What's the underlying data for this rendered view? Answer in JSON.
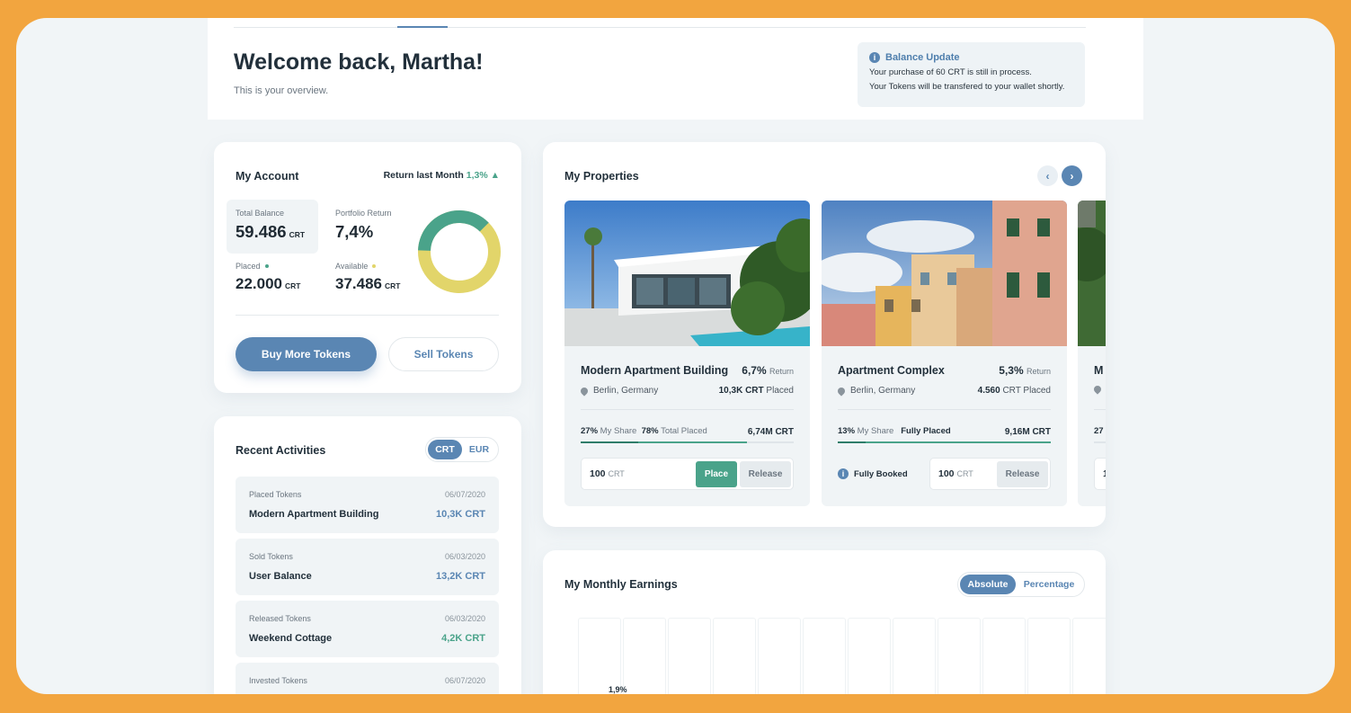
{
  "header": {
    "welcome": "Welcome back, Martha!",
    "subtitle": "This is your overview."
  },
  "notice": {
    "icon": "info-icon",
    "title": "Balance Update",
    "line1": "Your purchase of 60 CRT is still in process.",
    "line2": "Your Tokens will be transfered to your wallet shortly."
  },
  "account": {
    "title": "My Account",
    "return_label": "Return last Month",
    "return_value": "1,3% ▲",
    "total_balance_label": "Total Balance",
    "total_balance_value": "59.486",
    "portfolio_return_label": "Portfolio Return",
    "portfolio_return_value": "7,4%",
    "placed_label": "Placed",
    "placed_value": "22.000",
    "available_label": "Available",
    "available_value": "37.486",
    "unit": "CRT",
    "placed_color": "#4aa38a",
    "available_color": "#e2d56a",
    "buy_button": "Buy More Tokens",
    "sell_button": "Sell Tokens"
  },
  "activities": {
    "title": "Recent Activities",
    "toggle": [
      "CRT",
      "EUR"
    ],
    "active_toggle": "CRT",
    "items": [
      {
        "type": "Placed Tokens",
        "date": "06/07/2020",
        "name": "Modern Apartment  Building",
        "amount": "10,3K CRT",
        "color": "#5a86b3"
      },
      {
        "type": "Sold Tokens",
        "date": "06/03/2020",
        "name": "User Balance",
        "amount": "13,2K CRT",
        "color": "#5a86b3"
      },
      {
        "type": "Released Tokens",
        "date": "06/03/2020",
        "name": "Weekend Cottage",
        "amount": "4,2K CRT",
        "color": "#4aa38a"
      },
      {
        "type": "Invested Tokens",
        "date": "06/07/2020",
        "name": "",
        "amount": "",
        "color": "#5a86b3"
      }
    ]
  },
  "properties": {
    "title": "My Properties",
    "prev_icon": "chevron-left-icon",
    "next_icon": "chevron-right-icon",
    "prev_glyph": "‹",
    "next_glyph": "›",
    "items": [
      {
        "name": "Modern Apartment Building",
        "return_value": "6,7%",
        "return_label": "Return",
        "location": "Berlin, Germany",
        "placed_value": "10,3K CRT",
        "placed_label": "Placed",
        "share_pct": "27%",
        "share_label": "My Share",
        "total_pct": "78%",
        "total_label": "Total Placed",
        "total_crt": "6,74M CRT",
        "qty": "100",
        "qty_unit": "CRT",
        "place_label": "Place",
        "release_label": "Release",
        "my_share_fraction": 0.27,
        "placed_fraction": 0.78
      },
      {
        "name": "Apartment Complex",
        "return_value": "5,3%",
        "return_label": "Return",
        "location": "Berlin, Germany",
        "placed_value": "4.560",
        "placed_label": "CRT Placed",
        "share_pct": "13%",
        "share_label": "My Share",
        "total_label": "Fully Placed",
        "total_crt": "9,16M CRT",
        "status": "Fully Booked",
        "qty": "100",
        "qty_unit": "CRT",
        "release_label": "Release",
        "my_share_fraction": 0.13,
        "placed_fraction": 1.0
      },
      {
        "name": "M",
        "share_pct": "27",
        "qty": "1"
      }
    ]
  },
  "earnings": {
    "title": "My Monthly Earnings",
    "toggle": [
      "Absolute",
      "Percentage"
    ],
    "active_toggle": "Absolute",
    "partial_label": "1,9%"
  }
}
